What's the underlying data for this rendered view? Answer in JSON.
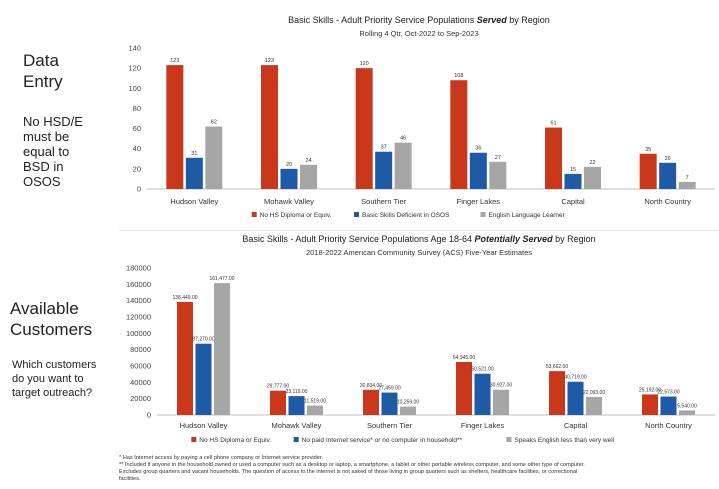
{
  "sidebar": {
    "title_1": "Data\nEntry",
    "note_1": "No HSD/E\nmust be\nequal to\nBSD in\nOSOS",
    "title_2": "Available\nCustomers",
    "note_2": "Which customers\ndo you want to\ntarget outreach?"
  },
  "colors": {
    "series1": "#c9381a",
    "series2": "#1f5aa6",
    "series3": "#a6a6a6"
  },
  "chart_data": [
    {
      "type": "bar",
      "title_prefix": "Basic Skills - Adult Priority Service Populations ",
      "title_emphasis": "Served",
      "title_suffix": " by Region",
      "subtitle": "Rolling 4 Qtr, Oct-2022 to Sep-2023",
      "categories": [
        "Hudson Valley",
        "Mohawk Valley",
        "Southern Tier",
        "Finger Lakes",
        "Capital",
        "North Country"
      ],
      "series": [
        {
          "name": "No HS Diploma or Equiv.",
          "values": [
            123,
            123,
            120,
            108,
            61,
            35
          ],
          "labels": [
            "123",
            "123",
            "120",
            "108",
            "61",
            "35"
          ]
        },
        {
          "name": "Basic Skills Deficient in OSOS",
          "values": [
            31,
            20,
            37,
            36,
            15,
            26
          ],
          "labels": [
            "31",
            "20",
            "37",
            "36",
            "15",
            "26"
          ]
        },
        {
          "name": "English Language Learner",
          "values": [
            62,
            24,
            46,
            27,
            22,
            7
          ],
          "labels": [
            "62",
            "24",
            "46",
            "27",
            "22",
            "7"
          ]
        }
      ],
      "ylim": [
        0,
        140
      ],
      "yticks": [
        "0",
        "20",
        "40",
        "60",
        "80",
        "100",
        "120",
        "140"
      ],
      "legend": "bottom",
      "grid": false
    },
    {
      "type": "bar",
      "title_prefix": "Basic Skills - Adult Priority Service Populations Age 18-64 ",
      "title_emphasis": "Potentially Served",
      "title_suffix": " by Region",
      "subtitle": "2018-2022 American Community Survey (ACS) Five-Year Estimates",
      "categories": [
        "Hudson Valley",
        "Mohawk Valley",
        "Southern Tier",
        "Finger Lakes",
        "Capital",
        "North Country"
      ],
      "series": [
        {
          "name": "No HS Diploma or Equiv.",
          "values": [
            138449,
            29777,
            30834,
            64945,
            53662,
            25192
          ],
          "labels": [
            "138,449.00",
            "29,777.00",
            "30,834.00",
            "64,945.00",
            "53,662.00",
            "25,192.00"
          ]
        },
        {
          "name": "No paid Internet service* or no computer in household**",
          "values": [
            87270,
            23119,
            27459,
            50521,
            40719,
            22573
          ],
          "labels": [
            "87,270.00",
            "23,119.00",
            "27,459.00",
            "50,521.00",
            "40,719.00",
            "22,573.00"
          ]
        },
        {
          "name": "Speaks English less than very well",
          "values": [
            161477,
            11519,
            10259,
            30927,
            22093,
            5540
          ],
          "labels": [
            "161,477.00",
            "11,519.00",
            "10,259.00",
            "30,927.00",
            "22,093.00",
            "5,540.00"
          ]
        }
      ],
      "ylim": [
        0,
        180000
      ],
      "yticks": [
        "0",
        "20000",
        "40000",
        "60000",
        "80000",
        "100000",
        "120000",
        "140000",
        "160000",
        "180000"
      ],
      "legend": "bottom",
      "grid": false
    }
  ],
  "footnotes": [
    "* Has Internet access by paying a cell phone company or Internet service provider.",
    "** Included if anyone in the household owned or used a computer such as a desktop or laptop, a smartphone, a tablet or other portable wireless computer, and some other type of computer.",
    "Excludes group quarters and vacant households. The question of access to the internet is not asked of those living in group quarters such as shelters, healthcare facilities, or correctional",
    "facilities."
  ]
}
